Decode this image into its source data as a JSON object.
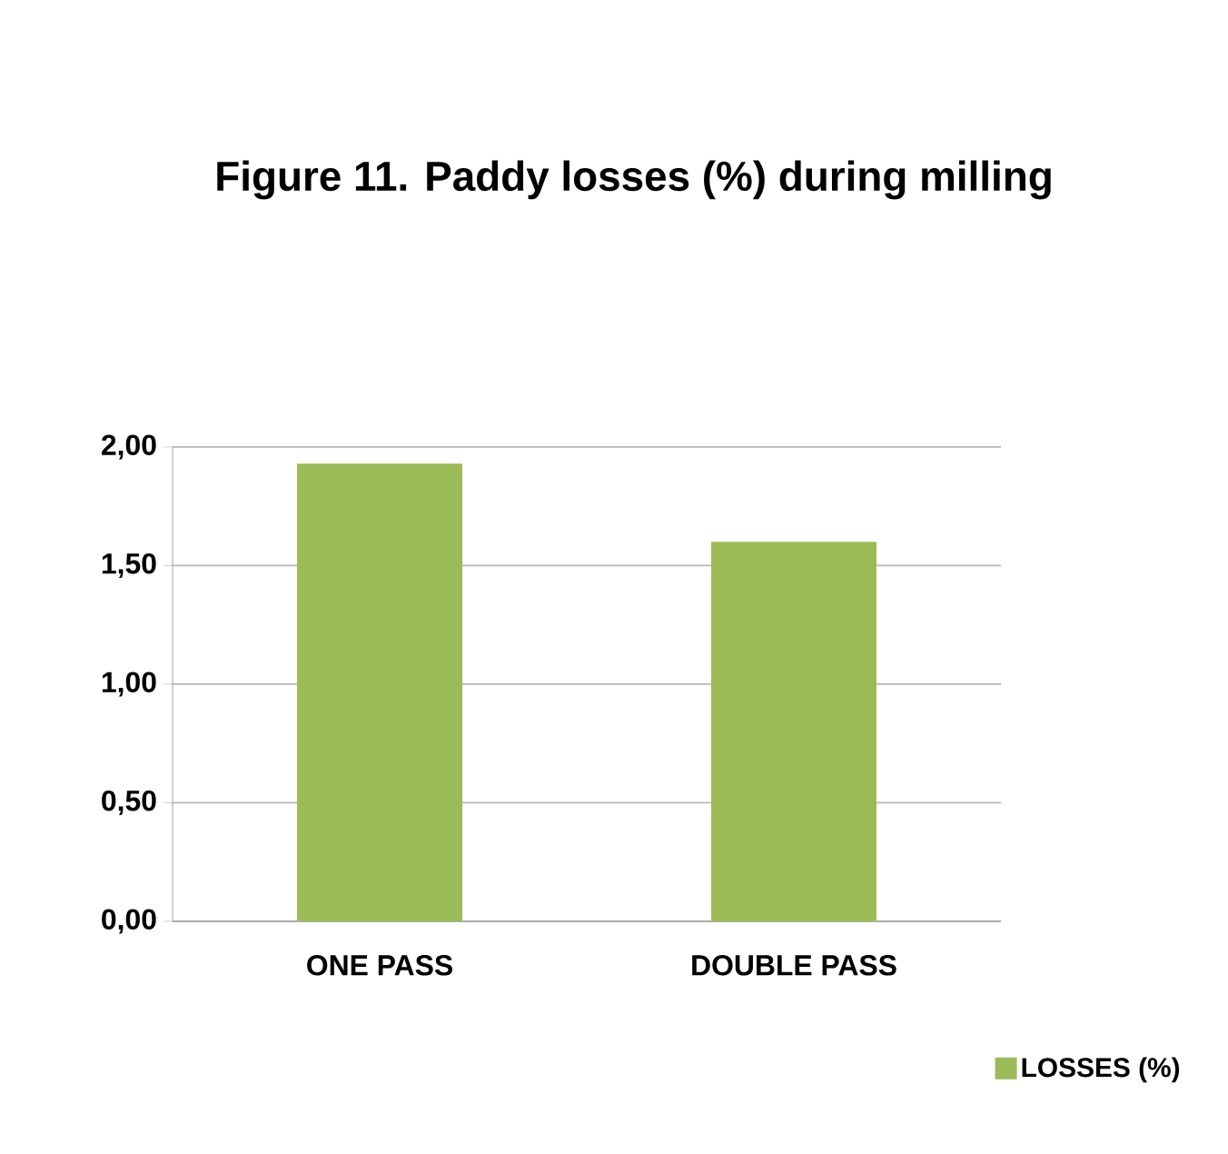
{
  "chart_data": {
    "type": "bar",
    "title": "Figure 11. Paddy losses (%) during milling",
    "categories": [
      "ONE PASS",
      "DOUBLE PASS"
    ],
    "series": [
      {
        "name": "LOSSES (%)",
        "color": "#9bbb59",
        "values": [
          1.93,
          1.6
        ]
      }
    ],
    "ylim": [
      0,
      2
    ],
    "yticks": [
      {
        "value": 0,
        "label": "0,00"
      },
      {
        "value": 0.5,
        "label": "0,50"
      },
      {
        "value": 1,
        "label": "1,00"
      },
      {
        "value": 1.5,
        "label": "1,50"
      },
      {
        "value": 2,
        "label": "2,00"
      }
    ],
    "grid": "y",
    "legend": "bottom right"
  }
}
